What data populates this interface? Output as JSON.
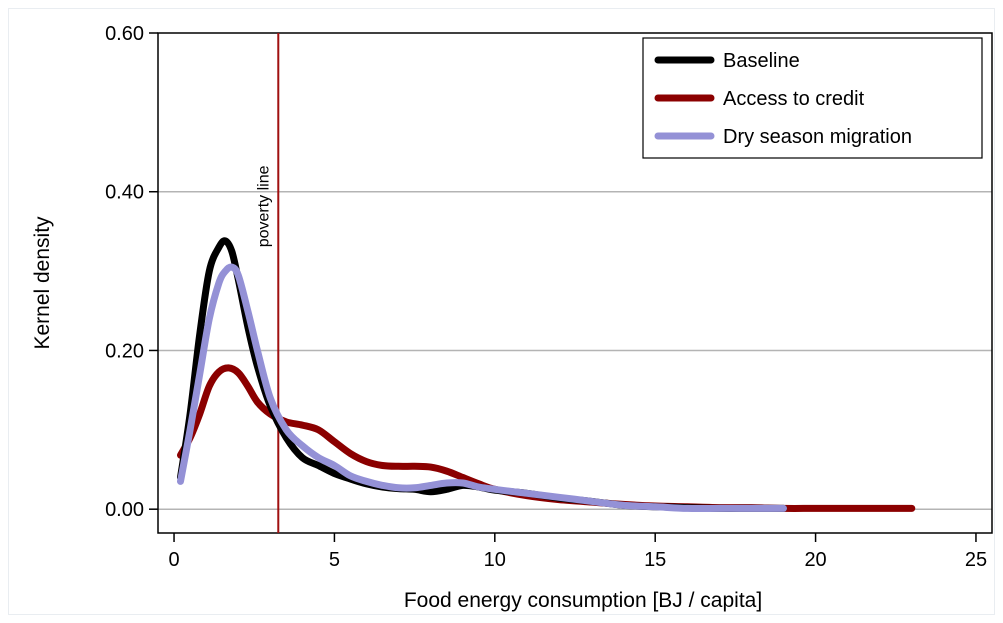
{
  "chart_data": {
    "type": "line",
    "title": "",
    "xlabel": "Food energy consumption [BJ / capita]",
    "ylabel": "Kernel density",
    "xlim": [
      -0.5,
      25.5
    ],
    "ylim": [
      -0.03,
      0.6
    ],
    "xticks": [
      0,
      5,
      10,
      15,
      20,
      25
    ],
    "xtick_labels": [
      "0",
      "5",
      "10",
      "15",
      "20",
      "25"
    ],
    "yticks": [
      0.0,
      0.2,
      0.4,
      0.6
    ],
    "ytick_labels": [
      "0.00",
      "0.20",
      "0.40",
      "0.60"
    ],
    "grid": "horizontal",
    "legend_position": "top-right",
    "annotation": {
      "label": "poverty line",
      "x": 3.25,
      "color": "#a01010"
    },
    "series": [
      {
        "name": "Baseline",
        "color": "#000000",
        "x": [
          0.2,
          0.5,
          0.8,
          1.1,
          1.4,
          1.6,
          1.8,
          2.0,
          2.3,
          2.6,
          3.0,
          3.5,
          4.0,
          4.5,
          5.0,
          5.5,
          6.0,
          6.5,
          7.0,
          7.5,
          8.0,
          8.5,
          9.0,
          9.5,
          10.0,
          11.0,
          12.0,
          13.0,
          14.0,
          15.0,
          16.0,
          17.0,
          18.0,
          19.0
        ],
        "y": [
          0.04,
          0.12,
          0.22,
          0.3,
          0.33,
          0.338,
          0.325,
          0.29,
          0.23,
          0.18,
          0.13,
          0.09,
          0.065,
          0.055,
          0.045,
          0.038,
          0.032,
          0.028,
          0.026,
          0.025,
          0.022,
          0.025,
          0.03,
          0.028,
          0.024,
          0.02,
          0.014,
          0.01,
          0.005,
          0.003,
          0.002,
          0.001,
          0.001,
          0.001
        ]
      },
      {
        "name": "Access to credit",
        "color": "#8b0000",
        "x": [
          0.2,
          0.5,
          0.8,
          1.1,
          1.4,
          1.7,
          2.0,
          2.3,
          2.6,
          3.0,
          3.5,
          4.0,
          4.5,
          5.0,
          5.5,
          6.0,
          6.5,
          7.0,
          7.5,
          8.0,
          8.5,
          9.0,
          9.5,
          10.0,
          11.0,
          12.0,
          13.0,
          14.0,
          15.0,
          16.0,
          17.0,
          18.0,
          19.0,
          20.0,
          21.0,
          22.0,
          23.0
        ],
        "y": [
          0.068,
          0.09,
          0.12,
          0.155,
          0.173,
          0.178,
          0.172,
          0.155,
          0.135,
          0.12,
          0.11,
          0.106,
          0.1,
          0.085,
          0.07,
          0.06,
          0.055,
          0.054,
          0.054,
          0.053,
          0.048,
          0.04,
          0.032,
          0.025,
          0.017,
          0.012,
          0.009,
          0.006,
          0.004,
          0.003,
          0.002,
          0.002,
          0.001,
          0.001,
          0.001,
          0.001,
          0.001
        ]
      },
      {
        "name": "Dry season migration",
        "color": "#9491d6",
        "x": [
          0.2,
          0.5,
          0.8,
          1.1,
          1.4,
          1.6,
          1.8,
          2.0,
          2.3,
          2.6,
          3.0,
          3.5,
          4.0,
          4.5,
          5.0,
          5.5,
          6.0,
          6.5,
          7.0,
          7.5,
          8.0,
          8.5,
          9.0,
          9.5,
          10.0,
          11.0,
          12.0,
          13.0,
          14.0,
          15.0,
          16.0,
          17.0,
          18.0,
          19.0
        ],
        "y": [
          0.035,
          0.1,
          0.17,
          0.24,
          0.285,
          0.3,
          0.305,
          0.295,
          0.25,
          0.2,
          0.14,
          0.1,
          0.08,
          0.065,
          0.055,
          0.042,
          0.035,
          0.03,
          0.027,
          0.027,
          0.03,
          0.033,
          0.033,
          0.028,
          0.025,
          0.02,
          0.015,
          0.01,
          0.005,
          0.003,
          0.001,
          0.001,
          0.001,
          0.001
        ]
      }
    ]
  }
}
